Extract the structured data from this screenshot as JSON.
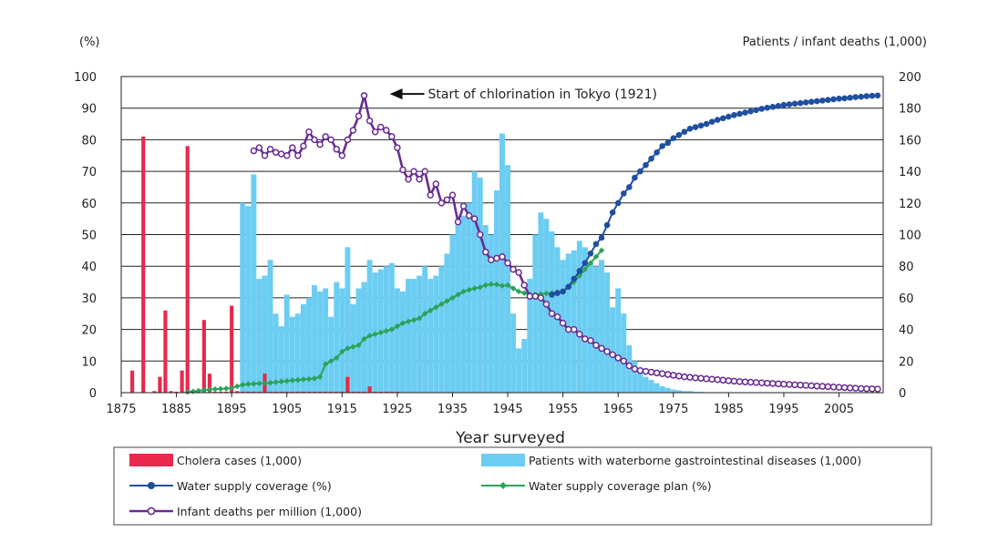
{
  "chart_data": {
    "type": "bar",
    "title": "",
    "xlabel": "Year surveyed",
    "ylabel_left": "(%)",
    "ylabel_right": "Patients / infant deaths (1,000)",
    "xlim": [
      1875,
      2013
    ],
    "ylim_left": [
      0,
      100
    ],
    "ylim_right": [
      0,
      200
    ],
    "x_ticks": [
      "1875",
      "1885",
      "1895",
      "1905",
      "1915",
      "1925",
      "1935",
      "1945",
      "1955",
      "1965",
      "1975",
      "1985",
      "1995",
      "2005"
    ],
    "y_ticks_left": [
      "0",
      "10",
      "20",
      "30",
      "40",
      "50",
      "60",
      "70",
      "80",
      "90",
      "100"
    ],
    "y_ticks_right": [
      "0",
      "20",
      "40",
      "60",
      "80",
      "100",
      "120",
      "140",
      "160",
      "180",
      "200"
    ],
    "grid": "horizontal",
    "legend_position": "bottom",
    "annotation": {
      "text": "Start of chlorination in Tokyo (1921)",
      "x": 1919,
      "y_right": 189
    },
    "series": [
      {
        "name": "Cholera cases (1,000)",
        "kind": "bar",
        "axis": "left",
        "color": "#e8294c",
        "x": [
          1877,
          1879,
          1881,
          1882,
          1883,
          1884,
          1885,
          1886,
          1887,
          1888,
          1889,
          1890,
          1891,
          1892,
          1893,
          1894,
          1895,
          1896,
          1897,
          1898,
          1899,
          1900,
          1901,
          1902,
          1903,
          1904,
          1905,
          1906,
          1907,
          1908,
          1909,
          1910,
          1911,
          1912,
          1913,
          1914,
          1915,
          1916,
          1917,
          1918,
          1919,
          1920,
          1921,
          1922,
          1923,
          1924,
          1925
        ],
        "values": [
          7,
          81,
          0.5,
          5,
          26,
          0.5,
          0.3,
          7,
          78,
          0.5,
          0.5,
          23,
          6,
          0.3,
          0.3,
          0.3,
          27.5,
          0.5,
          0.3,
          0.3,
          0.3,
          0.3,
          6,
          0.3,
          0.3,
          0.3,
          0.3,
          0.3,
          0.3,
          0.3,
          0.3,
          0.3,
          0.3,
          0.3,
          0.3,
          0.3,
          0.3,
          5,
          0.3,
          0.3,
          0.3,
          2,
          0.3,
          0.3,
          0.3,
          0.3,
          0.3
        ]
      },
      {
        "name": "Patients with waterborne gastrointestinal diseases (1,000)",
        "kind": "bar",
        "axis": "right",
        "color": "#6ccdf2",
        "x": [
          1897,
          1898,
          1899,
          1900,
          1901,
          1902,
          1903,
          1904,
          1905,
          1906,
          1907,
          1908,
          1909,
          1910,
          1911,
          1912,
          1913,
          1914,
          1915,
          1916,
          1917,
          1918,
          1919,
          1920,
          1921,
          1922,
          1923,
          1924,
          1925,
          1926,
          1927,
          1928,
          1929,
          1930,
          1931,
          1932,
          1933,
          1934,
          1935,
          1936,
          1937,
          1938,
          1939,
          1940,
          1941,
          1942,
          1943,
          1944,
          1945,
          1946,
          1947,
          1948,
          1949,
          1950,
          1951,
          1952,
          1953,
          1954,
          1955,
          1956,
          1957,
          1958,
          1959,
          1960,
          1961,
          1962,
          1963,
          1964,
          1965,
          1966,
          1967,
          1968,
          1969,
          1970,
          1971,
          1972,
          1973,
          1974,
          1975,
          1976,
          1977,
          1978,
          1979,
          1980
        ],
        "values": [
          120,
          118,
          138,
          72,
          74,
          84,
          50,
          42,
          62,
          48,
          50,
          56,
          60,
          68,
          64,
          66,
          48,
          70,
          66,
          92,
          56,
          66,
          70,
          84,
          76,
          78,
          80,
          82,
          66,
          64,
          72,
          72,
          74,
          80,
          72,
          74,
          80,
          88,
          100,
          110,
          112,
          120,
          140,
          136,
          106,
          100,
          128,
          164,
          144,
          50,
          28,
          34,
          72,
          100,
          114,
          110,
          102,
          92,
          84,
          88,
          90,
          96,
          92,
          82,
          80,
          84,
          76,
          54,
          66,
          50,
          30,
          20,
          14,
          10,
          8,
          6,
          4,
          3,
          2,
          1.5,
          1,
          1,
          0.5,
          0.5
        ]
      },
      {
        "name": "Water supply coverage (%)",
        "kind": "line",
        "axis": "left",
        "color": "#1f4fa0",
        "x": [
          1953,
          1954,
          1955,
          1956,
          1957,
          1958,
          1959,
          1960,
          1961,
          1962,
          1963,
          1964,
          1965,
          1966,
          1967,
          1968,
          1969,
          1970,
          1971,
          1972,
          1973,
          1974,
          1975,
          1976,
          1977,
          1978,
          1979,
          1980,
          1981,
          1982,
          1983,
          1984,
          1985,
          1986,
          1987,
          1988,
          1989,
          1990,
          1991,
          1992,
          1993,
          1994,
          1995,
          1996,
          1997,
          1998,
          1999,
          2000,
          2001,
          2002,
          2003,
          2004,
          2005,
          2006,
          2007,
          2008,
          2009,
          2010,
          2011,
          2012
        ],
        "values": [
          31,
          31.5,
          32,
          33.5,
          36,
          38.5,
          41,
          44,
          47,
          49,
          53,
          57,
          60,
          63,
          65,
          68,
          70,
          72,
          74,
          76,
          78,
          79,
          80.5,
          81.5,
          82.5,
          83.5,
          84,
          84.5,
          85,
          85.7,
          86.3,
          86.8,
          87.3,
          87.8,
          88.2,
          88.6,
          89,
          89.4,
          89.8,
          90.1,
          90.4,
          90.7,
          91,
          91.2,
          91.4,
          91.6,
          91.8,
          92,
          92.2,
          92.4,
          92.6,
          92.8,
          93,
          93.1,
          93.3,
          93.5,
          93.6,
          93.8,
          93.9,
          94
        ]
      },
      {
        "name": "Water supply coverage plan (%)",
        "kind": "line",
        "axis": "left",
        "color": "#2aa35a",
        "x": [
          1887,
          1888,
          1889,
          1890,
          1891,
          1892,
          1893,
          1894,
          1895,
          1896,
          1897,
          1898,
          1899,
          1900,
          1901,
          1902,
          1903,
          1904,
          1905,
          1906,
          1907,
          1908,
          1909,
          1910,
          1911,
          1912,
          1913,
          1914,
          1915,
          1916,
          1917,
          1918,
          1919,
          1920,
          1921,
          1922,
          1923,
          1924,
          1925,
          1926,
          1927,
          1928,
          1929,
          1930,
          1931,
          1932,
          1933,
          1934,
          1935,
          1936,
          1937,
          1938,
          1939,
          1940,
          1941,
          1942,
          1943,
          1944,
          1945,
          1946,
          1947,
          1948,
          1949,
          1950,
          1951,
          1952,
          1953,
          1954,
          1955,
          1956,
          1957,
          1958,
          1959,
          1960,
          1961,
          1962
        ],
        "values": [
          0.2,
          0.4,
          0.6,
          0.8,
          1,
          1.1,
          1.2,
          1.3,
          1.5,
          2,
          2.5,
          2.7,
          2.8,
          2.9,
          3,
          3.1,
          3.3,
          3.5,
          3.7,
          3.9,
          4,
          4.2,
          4.3,
          4.5,
          5,
          9,
          10,
          11,
          13,
          14,
          14.5,
          15,
          17,
          18,
          18.5,
          19,
          19.5,
          20,
          21,
          22,
          22.5,
          23,
          23.5,
          25,
          26,
          27,
          28,
          29,
          30,
          31,
          32,
          32.5,
          33,
          33.3,
          34,
          34.3,
          34.2,
          33.8,
          34,
          33,
          32,
          31.5,
          31,
          31,
          31.2,
          31.4,
          31.5,
          31.8,
          32,
          33.5,
          35,
          37,
          39,
          41,
          43,
          45
        ]
      },
      {
        "name": "Infant deaths per million (1,000)",
        "kind": "line",
        "axis": "right",
        "color": "#6a2c91",
        "x": [
          1899,
          1900,
          1901,
          1902,
          1903,
          1904,
          1905,
          1906,
          1907,
          1908,
          1909,
          1910,
          1911,
          1912,
          1913,
          1914,
          1915,
          1916,
          1917,
          1918,
          1919,
          1920,
          1921,
          1922,
          1923,
          1924,
          1925,
          1926,
          1927,
          1928,
          1929,
          1930,
          1931,
          1932,
          1933,
          1934,
          1935,
          1936,
          1937,
          1938,
          1939,
          1940,
          1941,
          1942,
          1943,
          1944,
          1945,
          1946,
          1947,
          1948,
          1949,
          1950,
          1951,
          1952,
          1953,
          1954,
          1955,
          1956,
          1957,
          1958,
          1959,
          1960,
          1961,
          1962,
          1963,
          1964,
          1965,
          1966,
          1967,
          1968,
          1969,
          1970,
          1971,
          1972,
          1973,
          1974,
          1975,
          1976,
          1977,
          1978,
          1979,
          1980,
          1981,
          1982,
          1983,
          1984,
          1985,
          1986,
          1987,
          1988,
          1989,
          1990,
          1991,
          1992,
          1993,
          1994,
          1995,
          1996,
          1997,
          1998,
          1999,
          2000,
          2001,
          2002,
          2003,
          2004,
          2005,
          2006,
          2007,
          2008,
          2009,
          2010,
          2011,
          2012
        ],
        "values": [
          153,
          155,
          150,
          154,
          152,
          151,
          150,
          155,
          150,
          156,
          165,
          160,
          157,
          162,
          160,
          154,
          150,
          160,
          166,
          175,
          188,
          172,
          165,
          168,
          166,
          162,
          155,
          141,
          135,
          140,
          135,
          140,
          125,
          132,
          120,
          122,
          125,
          108,
          118,
          112,
          110,
          100,
          89,
          84,
          85,
          86,
          82,
          78,
          76,
          68,
          61,
          61,
          60,
          56,
          50,
          48,
          44,
          40,
          40,
          37,
          34,
          33,
          30,
          28,
          26,
          24,
          22,
          20,
          17,
          15,
          14,
          13.5,
          13,
          12.5,
          12,
          11.5,
          11,
          10.5,
          10,
          9.7,
          9.4,
          9.1,
          8.8,
          8.5,
          8.2,
          7.9,
          7.6,
          7.3,
          7,
          6.8,
          6.6,
          6.4,
          6.2,
          6,
          5.8,
          5.6,
          5.4,
          5.2,
          5,
          4.8,
          4.6,
          4.4,
          4.2,
          4,
          3.8,
          3.6,
          3.4,
          3.2,
          3,
          2.8,
          2.6,
          2.5,
          2.4,
          2.3
        ]
      }
    ]
  }
}
